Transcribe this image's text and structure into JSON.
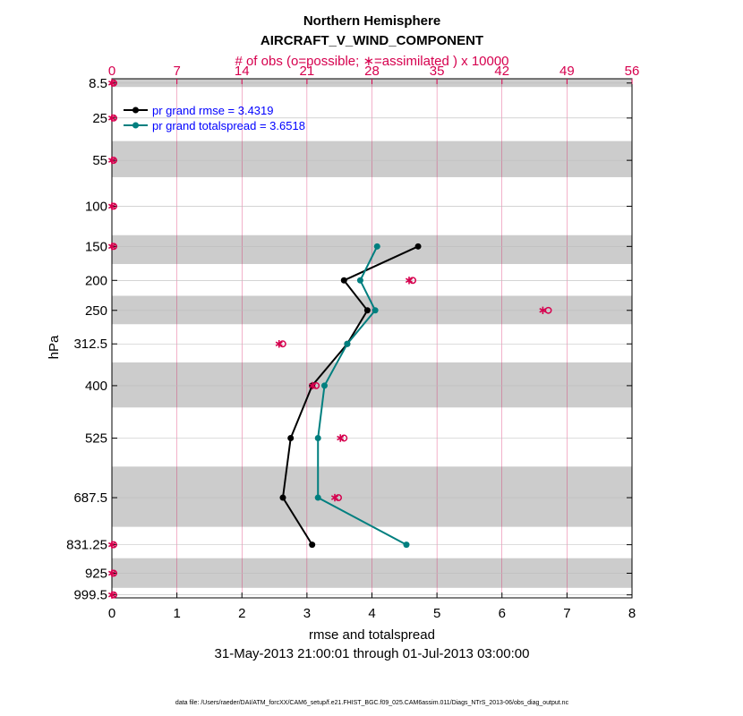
{
  "chart_data": {
    "type": "line",
    "title": "Northern Hemisphere",
    "subtitle": "AIRCRAFT_V_WIND_COMPONENT",
    "top_axis_label": "# of obs (o=possible; ∗=assimilated ) x 10000",
    "xlabel": "rmse and totalspread",
    "ylabel": "hPa",
    "date_range": "31-May-2013 21:00:01 through 01-Jul-2013 03:00:00",
    "footnote": "data file: /Users/raeder/DAI/ATM_forcXX/CAM6_setup/f.e21.FHIST_BGC.f09_025.CAM6assim.011/Diags_NTrS_2013-06/obs_diag_output.nc",
    "xlim": [
      0,
      8
    ],
    "xticks": [
      0,
      1,
      2,
      3,
      4,
      5,
      6,
      7,
      8
    ],
    "top_xlim": [
      0,
      56
    ],
    "top_xticks": [
      0,
      7,
      14,
      21,
      28,
      35,
      42,
      49,
      56
    ],
    "levels": [
      8.5,
      25,
      55,
      100,
      150,
      200,
      250,
      312.5,
      400,
      525,
      687.5,
      831.25,
      925,
      999.5
    ],
    "level_labels": [
      "8.5",
      "25",
      "55",
      "100",
      "150",
      "200",
      "250",
      "312.5",
      "400",
      "525",
      "687.5",
      "831.25",
      "925",
      "999.5"
    ],
    "shaded_bands_hPa": [
      [
        7,
        10
      ],
      [
        40,
        70
      ],
      [
        135,
        175
      ],
      [
        225,
        275
      ],
      [
        350,
        450
      ],
      [
        600,
        775
      ],
      [
        875,
        975
      ]
    ],
    "series": [
      {
        "name": "pr grand rmse",
        "legend": "pr grand rmse = 3.4319",
        "color": "#000000",
        "points": [
          [
            4.71,
            150
          ],
          [
            3.57,
            200
          ],
          [
            3.93,
            250
          ],
          [
            3.62,
            312.5
          ],
          [
            3.08,
            400
          ],
          [
            2.75,
            525
          ],
          [
            2.63,
            687.5
          ],
          [
            3.08,
            831.25
          ]
        ]
      },
      {
        "name": "pr grand totalspread",
        "legend": "pr grand totalspread = 3.6518",
        "color": "#007f7f",
        "points": [
          [
            4.08,
            150
          ],
          [
            3.82,
            200
          ],
          [
            4.05,
            250
          ],
          [
            3.62,
            312.5
          ],
          [
            3.27,
            400
          ],
          [
            3.17,
            525
          ],
          [
            3.17,
            687.5
          ],
          [
            4.53,
            831.25
          ]
        ]
      }
    ],
    "obs_counts": {
      "unit": "x 10000",
      "possible": [
        [
          0,
          8.5
        ],
        [
          0,
          25
        ],
        [
          0,
          55
        ],
        [
          0,
          100
        ],
        [
          0,
          150
        ],
        [
          32.2,
          200
        ],
        [
          46.8,
          250
        ],
        [
          18.2,
          312.5
        ],
        [
          21.8,
          400
        ],
        [
          24.8,
          525
        ],
        [
          24.2,
          687.5
        ],
        [
          0,
          831.25
        ],
        [
          0,
          925
        ],
        [
          0,
          999.5
        ]
      ],
      "assimilated": [
        [
          0,
          8.5
        ],
        [
          0,
          25
        ],
        [
          0,
          55
        ],
        [
          0,
          100
        ],
        [
          0,
          150
        ],
        [
          32.0,
          200
        ],
        [
          46.4,
          250
        ],
        [
          18.0,
          312.5
        ],
        [
          21.6,
          400
        ],
        [
          24.6,
          525
        ],
        [
          24.0,
          687.5
        ],
        [
          0,
          831.25
        ],
        [
          0,
          925
        ],
        [
          0,
          999.5
        ]
      ]
    }
  }
}
